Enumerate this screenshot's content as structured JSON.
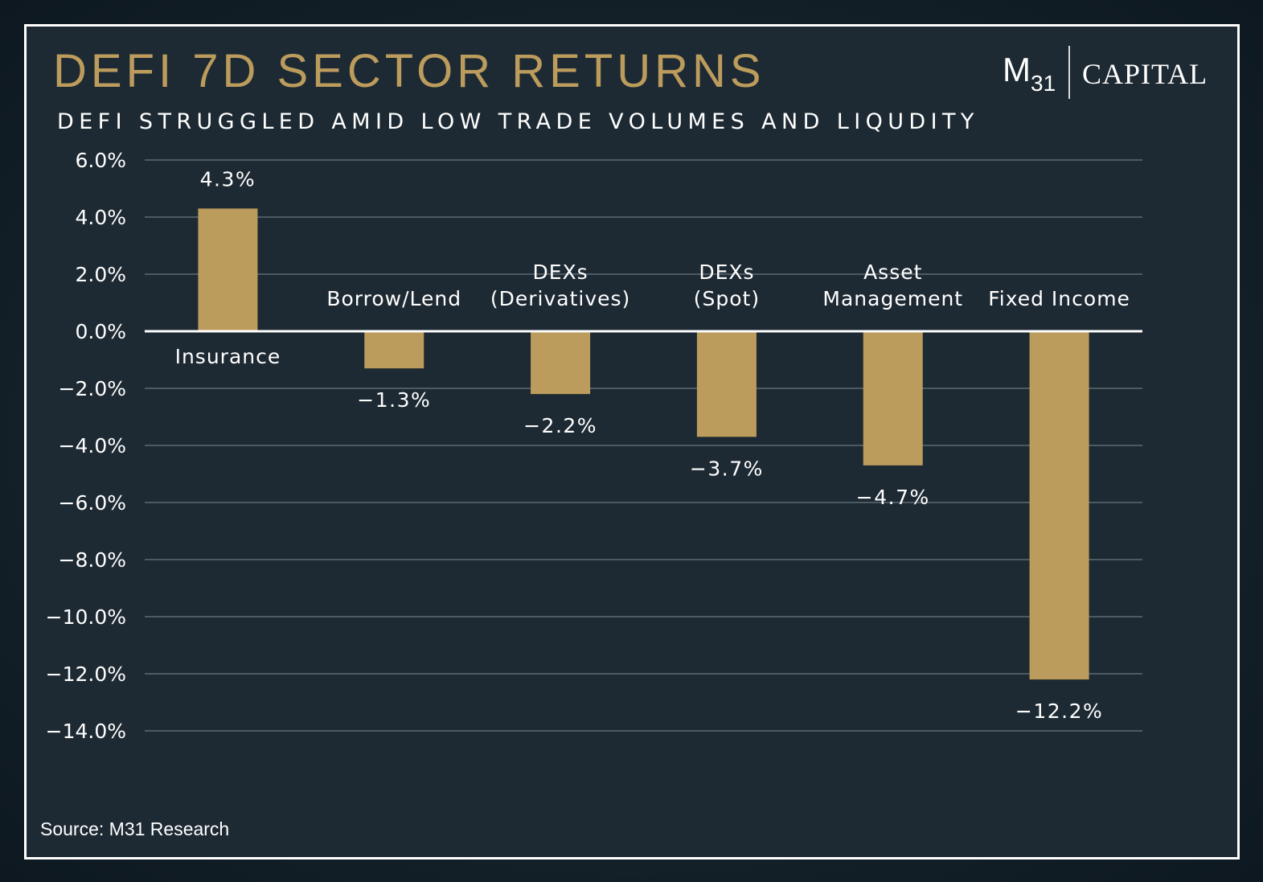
{
  "header": {
    "title": "DEFI 7D SECTOR RETURNS",
    "subtitle": "DEFI STRUGGLED AMID LOW TRADE VOLUMES AND LIQUDITY"
  },
  "logo": {
    "m": "M",
    "sub": "31",
    "capital": "CAPITAL"
  },
  "footer": {
    "source": "Source: M31 Research"
  },
  "colors": {
    "bar": "#bc9c5c",
    "title": "#bc9c5c",
    "background": "#1e2a33",
    "grid": "#5f6a72",
    "zero_line": "#ffffff"
  },
  "chart_data": {
    "type": "bar",
    "categories": [
      [
        "Insurance"
      ],
      [
        "Borrow/Lend"
      ],
      [
        "DEXs",
        "(Derivatives)"
      ],
      [
        "DEXs",
        "(Spot)"
      ],
      [
        "Asset",
        "Management"
      ],
      [
        "Fixed Income"
      ]
    ],
    "values": [
      4.3,
      -1.3,
      -2.2,
      -3.7,
      -4.7,
      -12.2
    ],
    "value_labels": [
      "4.3%",
      "−1.3%",
      "−2.2%",
      "−3.7%",
      "−4.7%",
      "−12.2%"
    ],
    "yticks": [
      6,
      4,
      2,
      0,
      -2,
      -4,
      -6,
      -8,
      -10,
      -12,
      -14
    ],
    "ytick_labels": [
      "6.0%",
      "4.0%",
      "2.0%",
      "0.0%",
      "−2.0%",
      "−4.0%",
      "−6.0%",
      "−8.0%",
      "−10.0%",
      "−12.0%",
      "−14.0%"
    ],
    "ylim": [
      -14,
      6
    ],
    "grid": true,
    "legend": "none"
  }
}
